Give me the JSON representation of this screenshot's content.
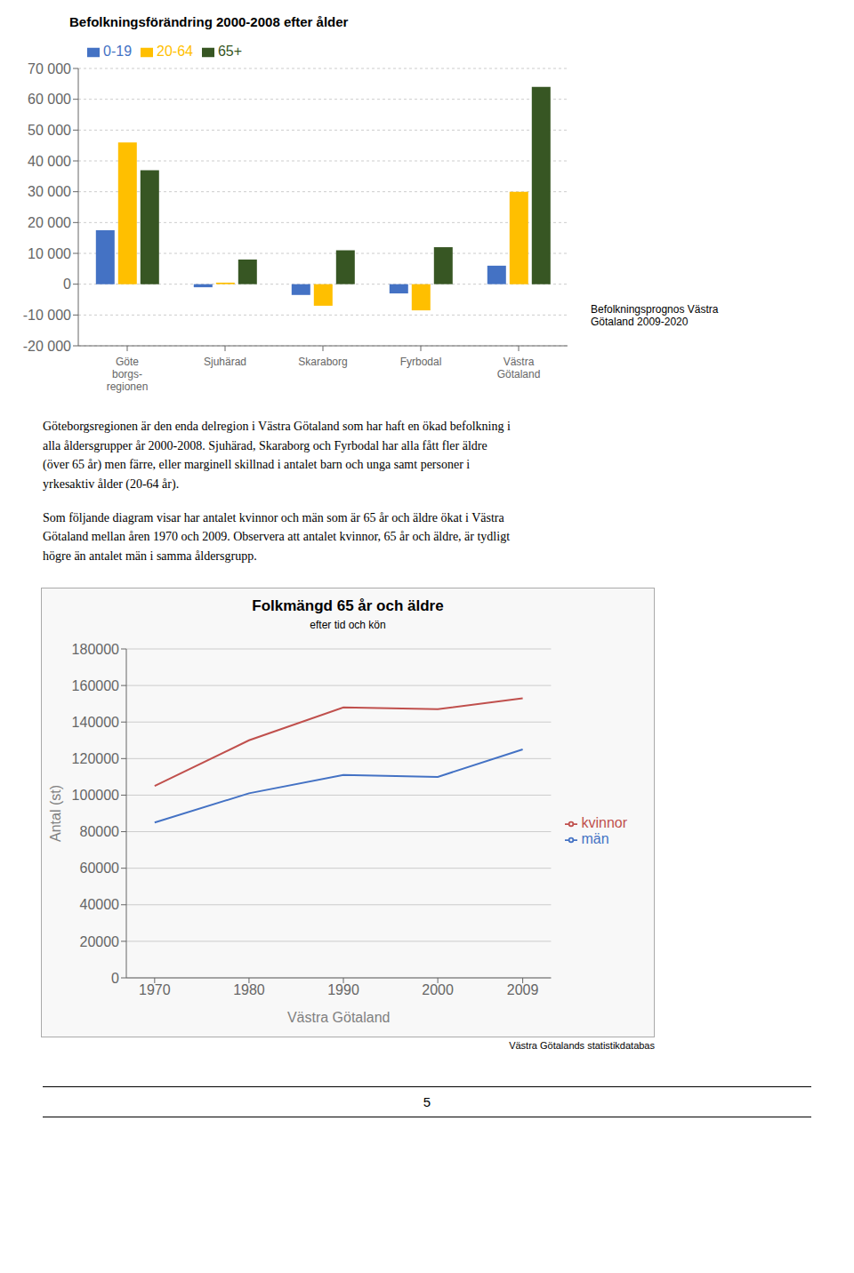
{
  "chart_data": [
    {
      "type": "bar",
      "title": "Befolkningsförändring 2000-2008 efter ålder",
      "categories": [
        "Göte\nborgs-\nregionen",
        "Sjuhärad",
        "Skaraborg",
        "Fyrbodal",
        "Västra\nGötaland"
      ],
      "series": [
        {
          "name": "0-19",
          "color": "#4472C4",
          "values": [
            17500,
            -1000,
            -3500,
            -3000,
            6000
          ]
        },
        {
          "name": "20-64",
          "color": "#FFBF00",
          "values": [
            46000,
            500,
            -7000,
            -8500,
            30000
          ]
        },
        {
          "name": "65+",
          "color": "#375623",
          "values": [
            37000,
            8000,
            11000,
            12000,
            64000
          ]
        }
      ],
      "ylim": [
        -20000,
        70000
      ],
      "yticks": [
        {
          "value": -20000,
          "label": "-20 000"
        },
        {
          "value": -10000,
          "label": "-10 000"
        },
        0,
        {
          "value": 10000,
          "label": "10 000"
        },
        {
          "value": 20000,
          "label": "20 000"
        },
        {
          "value": 30000,
          "label": "30 000"
        },
        {
          "value": 40000,
          "label": "40 000"
        },
        {
          "value": 50000,
          "label": "50 000"
        },
        {
          "value": 60000,
          "label": "60 000"
        },
        {
          "value": 70000,
          "label": "70 000"
        }
      ],
      "grid": true,
      "legend": "upper left",
      "annotations": [
        "Befolkningsprognos Västra\nGötaland 2009-2020"
      ]
    },
    {
      "type": "line",
      "title": "Folkmängd 65 år och äldre",
      "subtitle": "efter tid och kön",
      "x_label": "Västra Götaland",
      "y_label": "Antal (st)",
      "x": [
        1970,
        1980,
        1990,
        2000,
        2009
      ],
      "series": [
        {
          "name": "män",
          "color": "#4472C4",
          "values": [
            85000,
            101000,
            111000,
            110000,
            125000
          ]
        },
        {
          "name": "kvinnor",
          "color": "#C0504D",
          "values": [
            105000,
            130000,
            148000,
            147000,
            153000
          ]
        }
      ],
      "xlim": [
        1967,
        2012
      ],
      "xticks": [
        1970,
        1980,
        1990,
        2000,
        2009
      ],
      "ylim": [
        0,
        180000
      ],
      "yticks": [
        0,
        20000,
        40000,
        60000,
        80000,
        100000,
        120000,
        140000,
        160000,
        180000
      ],
      "grid": true,
      "legend": "right",
      "annotations": [
        "Göteborgsregionen är den enda delregion i Västra Götaland som har haft en ökad befolkning i\nalla åldersgrupper år 2000-2008. Sjuhärad, Skaraborg och Fyrbodal har alla fått fler äldre\n(över 65 år) men färre, eller marginell skillnad i antalet barn och unga samt personer i\nyrkesaktiv ålder (20-64 år).",
        "Som följande diagram visar har antalet kvinnor och män som är 65 år och äldre ökat i Västra\nGötaland mellan åren 1970 och 2009. Observera att antalet kvinnor, 65 år och äldre, är tydligt\nhögre än antalet män i samma åldersgrupp.",
        "Västra Götalands statistikdatabas",
        "5"
      ]
    }
  ]
}
